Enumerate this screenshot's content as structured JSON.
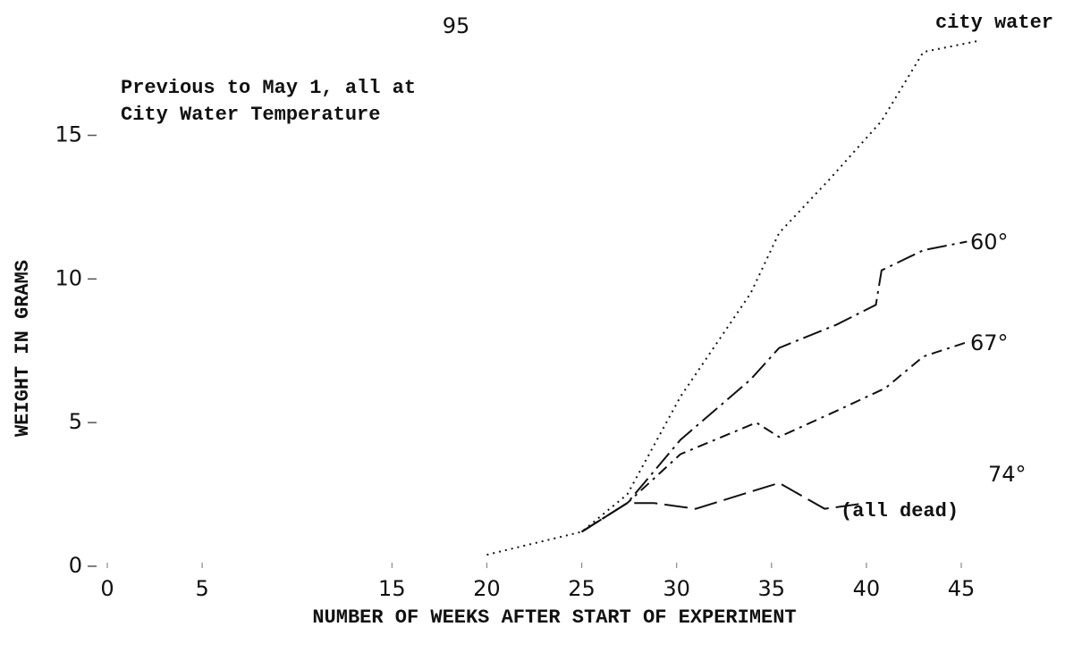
{
  "chart_data": {
    "type": "line",
    "page_number": "95",
    "annotation": [
      "Previous to May 1, all at",
      "City Water Temperature"
    ],
    "note": "(all dead)",
    "x_label": "NUMBER OF WEEKS AFTER START OF EXPERIMENT",
    "y_label": "WEIGHT IN GRAMS",
    "xlim": [
      0,
      45
    ],
    "xticks": [
      0,
      5,
      15,
      20,
      25,
      30,
      35,
      40,
      45
    ],
    "ylim": [
      0,
      18
    ],
    "yticks": [
      0,
      5,
      10,
      15
    ],
    "color": "#111111",
    "series": [
      {
        "name": "city water",
        "style": "dotted",
        "x": [
          20,
          25,
          27.4,
          30.2,
          33.9,
          35.4,
          38.1,
          40.8,
          43,
          46
        ],
        "values": [
          0.4,
          1.2,
          2.5,
          5.9,
          9.5,
          11.6,
          13.5,
          15.5,
          17.9,
          18.3
        ]
      },
      {
        "name": "60°",
        "style": "long-dash-dot",
        "x": [
          25,
          27.4,
          30.2,
          33.9,
          35.4,
          38.4,
          40.5,
          40.8,
          43,
          45.3
        ],
        "values": [
          1.2,
          2.2,
          4.4,
          6.5,
          7.6,
          8.4,
          9.1,
          10.3,
          11.0,
          11.3
        ]
      },
      {
        "name": "67°",
        "style": "dash-dot",
        "x": [
          25,
          27.4,
          30.2,
          34.2,
          35.4,
          38.4,
          41,
          43,
          45.3
        ],
        "values": [
          1.2,
          2.2,
          3.9,
          5.0,
          4.5,
          5.4,
          6.2,
          7.3,
          7.8
        ]
      },
      {
        "name": "74°",
        "style": "long-dash",
        "x": [
          25,
          27.4,
          28.8,
          31,
          35.4,
          37.8,
          40
        ],
        "values": [
          1.2,
          2.2,
          2.2,
          2.0,
          2.9,
          2.0,
          2.2
        ]
      }
    ]
  }
}
